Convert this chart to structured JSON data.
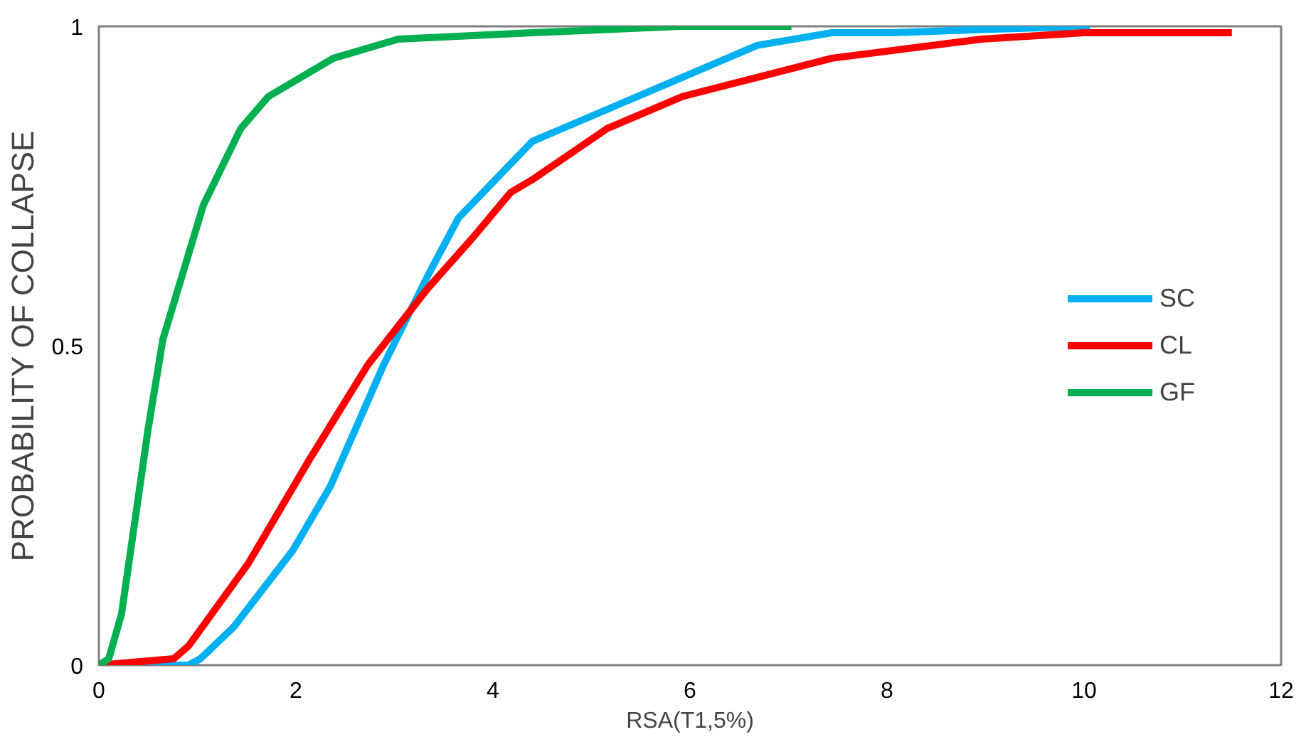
{
  "chart_data": {
    "type": "line",
    "xlabel": "RSA(T1,5%)",
    "ylabel": "PROBABILITY OF COLLAPSE",
    "xlim": [
      0,
      12
    ],
    "ylim": [
      0,
      1
    ],
    "xticks": [
      0,
      2,
      4,
      6,
      8,
      10,
      12
    ],
    "yticks": [
      0,
      0.5,
      1
    ],
    "grid": false,
    "legend": "right",
    "marker": "none",
    "line_style": "solid",
    "series": [
      {
        "name": "SC",
        "color": "#00b0f0",
        "x": [
          0,
          0.91,
          1.03,
          1.37,
          1.97,
          2.35,
          2.89,
          3.34,
          3.65,
          4.4,
          5.16,
          5.92,
          6.68,
          7.44,
          8.05,
          8.96,
          10.06
        ],
        "values": [
          0,
          0,
          0.01,
          0.06,
          0.18,
          0.28,
          0.47,
          0.61,
          0.7,
          0.82,
          0.87,
          0.92,
          0.97,
          0.99,
          0.99,
          0.995,
          1.0
        ]
      },
      {
        "name": "CL",
        "color": "#ff0000",
        "x": [
          0,
          0.76,
          0.91,
          1.52,
          2.13,
          2.73,
          3.34,
          3.8,
          4.18,
          4.4,
          5.16,
          5.92,
          6.68,
          7.44,
          8.96,
          10.0,
          11.5
        ],
        "values": [
          0,
          0.01,
          0.03,
          0.16,
          0.32,
          0.47,
          0.59,
          0.67,
          0.74,
          0.76,
          0.84,
          0.89,
          0.92,
          0.95,
          0.98,
          0.99,
          0.99
        ]
      },
      {
        "name": "GF",
        "color": "#00b050",
        "x": [
          0,
          0.1,
          0.23,
          0.5,
          0.65,
          1.06,
          1.44,
          1.72,
          2.38,
          3.04,
          4.4,
          5.9,
          7.03
        ],
        "values": [
          0,
          0.01,
          0.08,
          0.37,
          0.51,
          0.72,
          0.84,
          0.89,
          0.95,
          0.98,
          0.99,
          1.0,
          1.0
        ]
      }
    ]
  }
}
